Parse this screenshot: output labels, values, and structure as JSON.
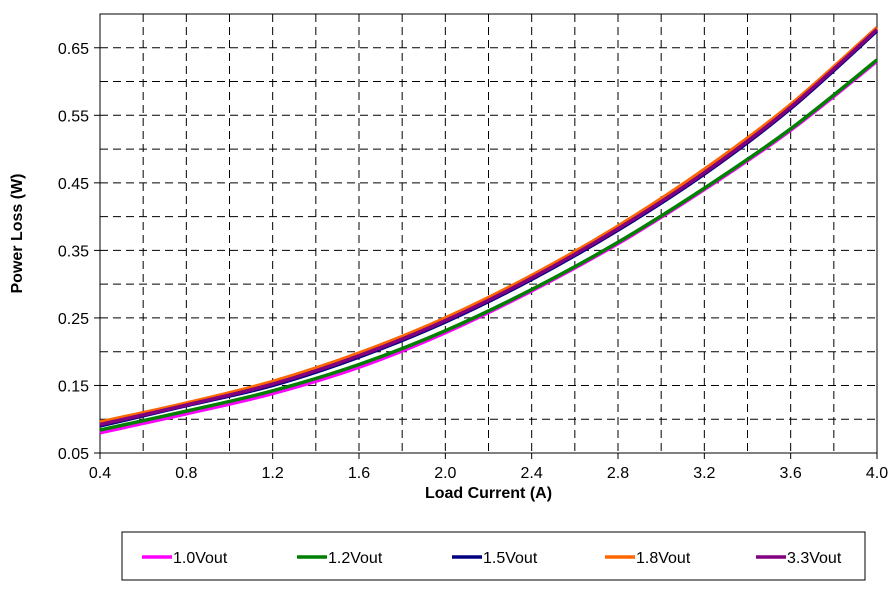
{
  "chart_data": {
    "type": "line",
    "xlabel": "Load Current (A)",
    "ylabel": "Power Loss (W)",
    "xlim": [
      0.4,
      4.0
    ],
    "ylim": [
      0.05,
      0.7
    ],
    "x_ticks": [
      "0.4",
      "0.8",
      "1.2",
      "1.6",
      "2.0",
      "2.4",
      "2.8",
      "3.2",
      "3.6",
      "4.0"
    ],
    "y_ticks": [
      "0.05",
      "0.15",
      "0.25",
      "0.35",
      "0.45",
      "0.55",
      "0.65"
    ],
    "grid": "dashed, major and minor",
    "legend_position": "bottom",
    "x": [
      0.4,
      0.8,
      1.2,
      1.6,
      2.0,
      2.4,
      2.8,
      3.2,
      3.6,
      4.0
    ],
    "series": [
      {
        "name": "1.0Vout",
        "color": "#ff00ff",
        "values": [
          0.08,
          0.108,
          0.138,
          0.177,
          0.228,
          0.29,
          0.36,
          0.44,
          0.528,
          0.63
        ]
      },
      {
        "name": "1.2Vout",
        "color": "#008000",
        "values": [
          0.084,
          0.112,
          0.142,
          0.181,
          0.231,
          0.292,
          0.362,
          0.442,
          0.53,
          0.632
        ]
      },
      {
        "name": "1.5Vout",
        "color": "#000080",
        "values": [
          0.09,
          0.12,
          0.15,
          0.192,
          0.244,
          0.307,
          0.38,
          0.463,
          0.56,
          0.675
        ]
      },
      {
        "name": "1.8Vout",
        "color": "#ff6600",
        "values": [
          0.096,
          0.124,
          0.156,
          0.198,
          0.25,
          0.313,
          0.386,
          0.47,
          0.566,
          0.68
        ]
      },
      {
        "name": "3.3Vout",
        "color": "#800080",
        "values": [
          0.092,
          0.121,
          0.152,
          0.194,
          0.246,
          0.309,
          0.382,
          0.465,
          0.562,
          0.677
        ]
      }
    ]
  }
}
